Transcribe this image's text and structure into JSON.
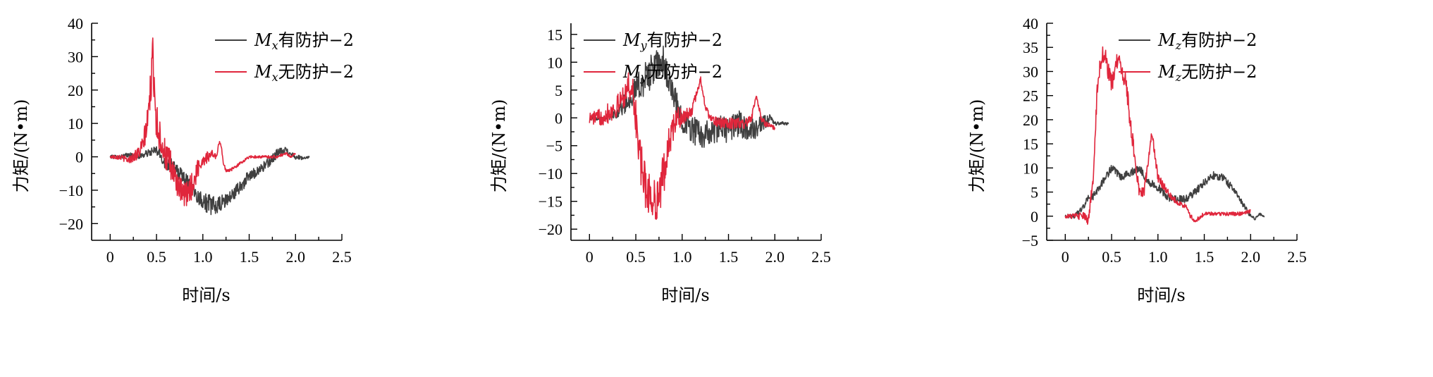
{
  "chart_data": [
    {
      "type": "line",
      "xlabel": "时间/s",
      "ylabel": "力矩/(N•m)",
      "xlim": [
        -0.2,
        2.5
      ],
      "ylim": [
        -25,
        40
      ],
      "xticks": [
        "0",
        "0.5",
        "1.0",
        "1.5",
        "2.0",
        "2.5"
      ],
      "yticks": [
        "−20",
        "−10",
        "0",
        "10",
        "20",
        "30",
        "40"
      ],
      "legend_position": "top-right",
      "series": [
        {
          "name": "Mx有防护−2",
          "name_sym": "M",
          "name_sub": "x",
          "name_rest": "有防护−2",
          "color": "#404040",
          "x": [
            0,
            0.1,
            0.2,
            0.3,
            0.4,
            0.5,
            0.55,
            0.6,
            0.65,
            0.7,
            0.75,
            0.8,
            0.85,
            0.9,
            0.95,
            1.0,
            1.05,
            1.1,
            1.15,
            1.2,
            1.3,
            1.4,
            1.5,
            1.6,
            1.7,
            1.8,
            1.9,
            2.0,
            2.1,
            2.15
          ],
          "y": [
            0,
            0,
            0.5,
            0,
            1,
            2,
            0,
            -2,
            -2,
            -4,
            -5,
            -6,
            -8,
            -10,
            -12,
            -13,
            -14,
            -14.5,
            -15,
            -14,
            -12,
            -9,
            -6,
            -4,
            -2,
            1,
            2,
            0,
            -0.5,
            0
          ],
          "noise": [
            0.5,
            0.6,
            0.8,
            0.8,
            1,
            1.5,
            2,
            2,
            2.2,
            2.2,
            2,
            2,
            2,
            2,
            2.2,
            2.5,
            3,
            3,
            2.5,
            2.5,
            2,
            2,
            2,
            1.5,
            1.5,
            1.5,
            1,
            0.8,
            0.4,
            0.2
          ]
        },
        {
          "name": "Mx无防护−2",
          "name_sym": "M",
          "name_sub": "x",
          "name_rest": "无防护−2",
          "color": "#e0263c",
          "x": [
            0,
            0.1,
            0.2,
            0.3,
            0.35,
            0.4,
            0.43,
            0.46,
            0.5,
            0.55,
            0.6,
            0.65,
            0.7,
            0.75,
            0.8,
            0.85,
            0.9,
            0.95,
            1.0,
            1.05,
            1.1,
            1.15,
            1.18,
            1.2,
            1.22,
            1.25,
            1.3,
            1.4,
            1.5,
            1.6,
            1.7,
            1.8,
            1.9,
            1.95,
            2.0
          ],
          "y": [
            0,
            0,
            -1,
            1,
            3,
            10,
            18,
            30,
            10,
            5,
            0,
            -3,
            -6,
            -10,
            -12,
            -10,
            -8,
            -3,
            -1,
            0,
            1,
            0,
            5,
            3,
            -2,
            -4,
            -4,
            -2,
            0,
            0,
            0,
            0,
            1,
            0,
            1
          ],
          "noise": [
            0.5,
            0.8,
            1,
            2,
            3,
            4,
            6,
            6,
            6,
            5,
            5,
            5,
            4,
            4,
            4,
            4,
            4,
            3,
            2,
            2,
            1,
            1,
            0.6,
            0.6,
            0.6,
            0.5,
            0.5,
            0.4,
            0.4,
            0.4,
            0.4,
            0.4,
            0.4,
            0.3,
            0.3
          ]
        }
      ]
    },
    {
      "type": "line",
      "xlabel": "时间/s",
      "ylabel": "力矩/(N•m)",
      "xlim": [
        -0.2,
        2.5
      ],
      "ylim": [
        -22,
        17
      ],
      "xticks": [
        "0",
        "0.5",
        "1.0",
        "1.5",
        "2.0",
        "2.5"
      ],
      "yticks": [
        "−20",
        "−15",
        "−10",
        "−5",
        "0",
        "5",
        "10",
        "15"
      ],
      "legend_position": "top-right",
      "series": [
        {
          "name": "My有防护−2",
          "name_sym": "M",
          "name_sub": "y",
          "name_rest": "有防护−2",
          "color": "#404040",
          "x": [
            0,
            0.1,
            0.2,
            0.3,
            0.4,
            0.5,
            0.6,
            0.7,
            0.8,
            0.85,
            0.9,
            0.95,
            1.0,
            1.1,
            1.2,
            1.3,
            1.4,
            1.5,
            1.6,
            1.7,
            1.8,
            1.9,
            1.95,
            2.0,
            2.1,
            2.15
          ],
          "y": [
            0,
            0,
            0,
            1,
            3,
            5,
            7,
            9,
            10,
            7,
            4,
            2,
            0,
            -2,
            -3,
            -3,
            -2,
            -2,
            -1,
            -2,
            -2,
            -1,
            0,
            -1,
            -1,
            -1
          ],
          "noise": [
            0.4,
            0.4,
            0.6,
            1,
            2,
            2.5,
            3,
            3,
            3,
            2.5,
            2.5,
            2.5,
            2.5,
            2.5,
            2.5,
            2.5,
            2.5,
            2.5,
            2.5,
            2,
            2,
            1.5,
            0.6,
            0.4,
            0.3,
            0.2
          ]
        },
        {
          "name": "My无防护−2",
          "name_sym": "M",
          "name_sub": "y",
          "name_rest": "无防护−2",
          "color": "#e0263c",
          "x": [
            0,
            0.1,
            0.2,
            0.3,
            0.4,
            0.45,
            0.5,
            0.55,
            0.6,
            0.65,
            0.7,
            0.75,
            0.8,
            0.85,
            0.9,
            0.95,
            1.0,
            1.1,
            1.15,
            1.2,
            1.25,
            1.3,
            1.4,
            1.5,
            1.6,
            1.7,
            1.75,
            1.8,
            1.85,
            1.9,
            2.0
          ],
          "y": [
            0,
            0,
            1,
            2,
            5,
            6,
            0,
            -8,
            -12,
            -14,
            -15,
            -14,
            -10,
            -5,
            -2,
            0,
            0,
            1,
            4,
            7,
            2,
            0,
            -1,
            -1,
            -1,
            -1,
            0,
            4,
            0,
            -1,
            -2
          ],
          "noise": [
            1,
            1.5,
            2,
            2,
            2.5,
            3,
            3.5,
            4,
            4,
            4,
            4,
            4,
            4,
            3,
            2.5,
            2,
            1.5,
            1,
            0.8,
            0.6,
            0.6,
            0.6,
            1,
            1,
            1,
            1,
            0.6,
            0.6,
            0.6,
            0.6,
            0.5
          ]
        }
      ]
    },
    {
      "type": "line",
      "xlabel": "时间/s",
      "ylabel": "力矩/(N•m)",
      "xlim": [
        -0.2,
        2.5
      ],
      "ylim": [
        -5,
        40
      ],
      "xticks": [
        "0",
        "0.5",
        "1.0",
        "1.5",
        "2.0",
        "2.5"
      ],
      "yticks": [
        "−5",
        "0",
        "5",
        "10",
        "15",
        "20",
        "25",
        "30",
        "35",
        "40"
      ],
      "legend_position": "top-right",
      "series": [
        {
          "name": "Mz有防护−2",
          "name_sym": "M",
          "name_sub": "z",
          "name_rest": "有防护−2",
          "color": "#404040",
          "x": [
            0,
            0.1,
            0.2,
            0.25,
            0.3,
            0.4,
            0.5,
            0.6,
            0.7,
            0.8,
            0.9,
            1.0,
            1.1,
            1.2,
            1.3,
            1.4,
            1.5,
            1.6,
            1.7,
            1.8,
            1.9,
            2.0,
            2.05,
            2.1,
            2.15
          ],
          "y": [
            0,
            0,
            2,
            4,
            4,
            7,
            10,
            8,
            9,
            10,
            7,
            6,
            4,
            3.5,
            3.5,
            5,
            7,
            8.5,
            8,
            6,
            3,
            0,
            -0.5,
            0.5,
            0
          ],
          "noise": [
            0.4,
            0.4,
            0.6,
            0.6,
            0.8,
            0.8,
            0.8,
            0.8,
            0.8,
            0.8,
            0.8,
            0.8,
            0.8,
            0.8,
            0.8,
            0.8,
            0.8,
            0.8,
            0.8,
            0.8,
            0.6,
            0.4,
            0.3,
            0.3,
            0.2
          ]
        },
        {
          "name": "Mz无防护−2",
          "name_sym": "M",
          "name_sub": "z",
          "name_rest": "无防护−2",
          "color": "#e0263c",
          "x": [
            0,
            0.1,
            0.2,
            0.25,
            0.3,
            0.35,
            0.4,
            0.43,
            0.5,
            0.55,
            0.6,
            0.65,
            0.7,
            0.75,
            0.8,
            0.85,
            0.9,
            0.93,
            0.95,
            1.0,
            1.1,
            1.2,
            1.3,
            1.35,
            1.4,
            1.5,
            1.6,
            1.7,
            1.8,
            1.9,
            2.0
          ],
          "y": [
            0,
            0,
            0,
            -1,
            8,
            28,
            34,
            33,
            27,
            32,
            31,
            28,
            20,
            12,
            5,
            5,
            12,
            17,
            15,
            8,
            5,
            3,
            2,
            0,
            -1,
            0.5,
            0.5,
            0.5,
            0.5,
            0.5,
            1
          ],
          "noise": [
            0.4,
            0.6,
            0.8,
            1,
            1.5,
            2,
            2,
            2,
            2,
            2,
            2,
            2,
            2,
            1.5,
            1.2,
            1,
            1,
            1,
            1,
            1,
            0.8,
            0.6,
            0.5,
            0.5,
            0.5,
            0.4,
            0.4,
            0.4,
            0.4,
            0.4,
            0.4
          ]
        }
      ]
    }
  ]
}
